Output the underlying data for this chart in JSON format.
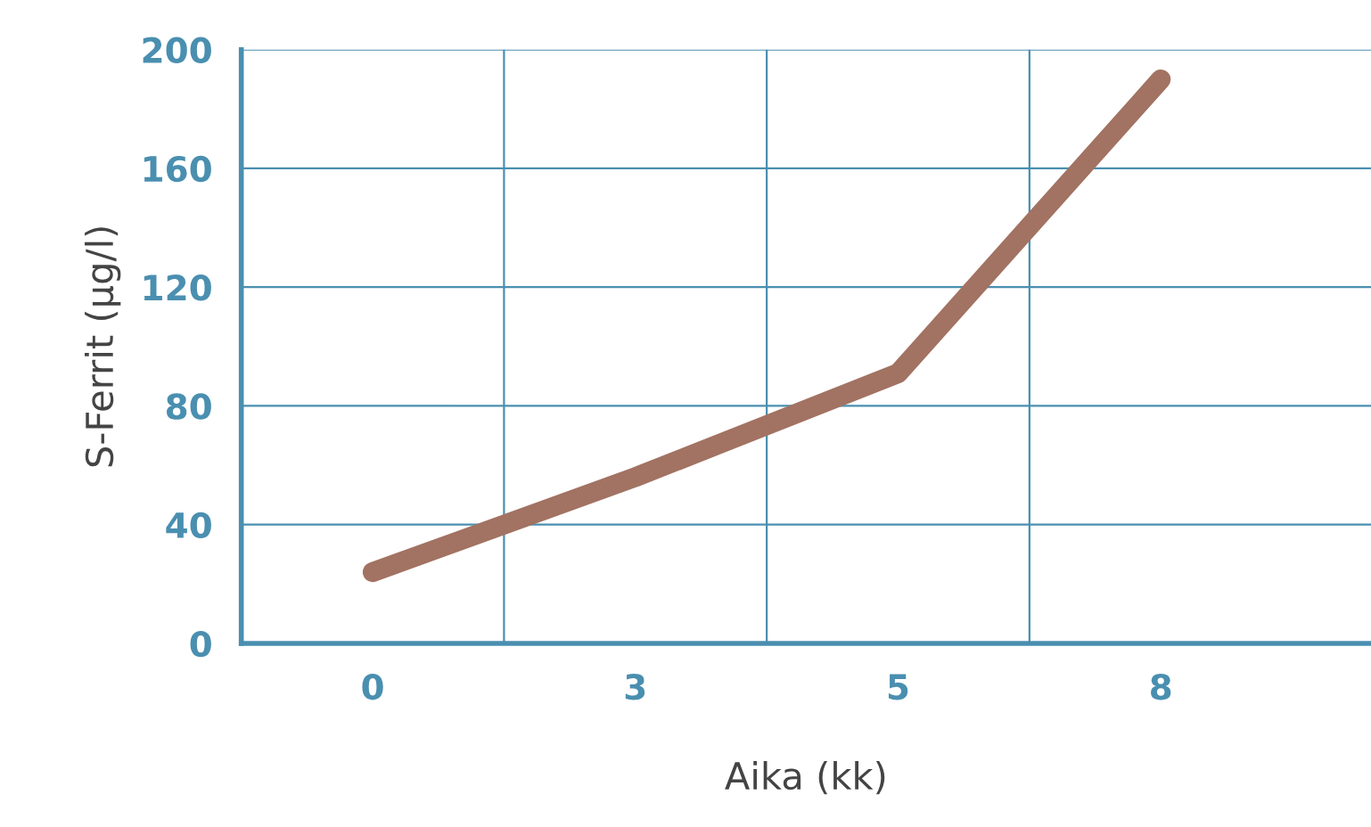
{
  "chart_data": {
    "type": "line",
    "xlabel": "Aika (kk)",
    "ylabel": "S-Ferrit (µg/l)",
    "categories": [
      "0",
      "3",
      "5",
      "8"
    ],
    "series": [
      {
        "color": "#a27262",
        "values": [
          24,
          56,
          91,
          190
        ]
      }
    ],
    "ylim": [
      0,
      200
    ],
    "yticks": [
      0,
      40,
      80,
      120,
      160,
      200
    ],
    "grid": true,
    "marker": "none",
    "line_style": "solid"
  }
}
